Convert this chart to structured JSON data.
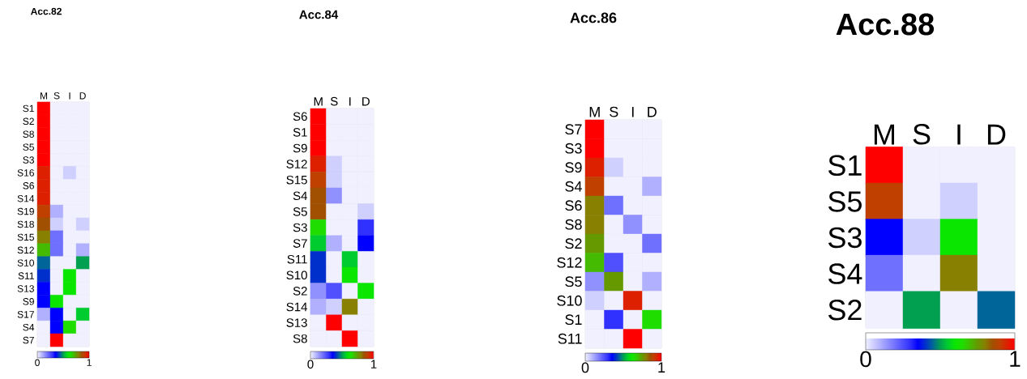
{
  "chart_data": [
    {
      "type": "heatmap",
      "title": "Acc.82",
      "categories": [
        "M",
        "S",
        "I",
        "D"
      ],
      "y_categories": [
        "S1",
        "S2",
        "S8",
        "S5",
        "S3",
        "S16",
        "S6",
        "S14",
        "S19",
        "S18",
        "S15",
        "S12",
        "S10",
        "S11",
        "S13",
        "S9",
        "S17",
        "S4",
        "S7"
      ],
      "cells": [
        [
          1,
          0,
          0,
          0
        ],
        [
          1,
          0,
          0,
          0
        ],
        [
          1,
          0,
          0,
          0
        ],
        [
          1,
          0,
          0,
          0
        ],
        [
          1,
          0,
          0,
          0
        ],
        [
          0.95,
          0,
          0.05,
          0
        ],
        [
          0.95,
          0,
          0,
          0
        ],
        [
          0.95,
          0,
          0,
          0
        ],
        [
          0.9,
          0.1,
          0,
          0
        ],
        [
          0.85,
          0.05,
          0,
          0.05
        ],
        [
          0.8,
          0.2,
          0,
          0
        ],
        [
          0.7,
          0.2,
          0,
          0.1
        ],
        [
          0.45,
          0,
          0,
          0.5
        ],
        [
          0.4,
          0,
          0.6,
          0
        ],
        [
          0.35,
          0,
          0.6,
          0
        ],
        [
          0.35,
          0.6,
          0,
          0
        ],
        [
          0.1,
          0.35,
          0,
          0.55
        ],
        [
          0,
          0.35,
          0.65,
          0
        ],
        [
          0,
          1,
          0,
          0
        ]
      ],
      "clim": [
        0,
        1
      ],
      "cticks": [
        0,
        1
      ]
    },
    {
      "type": "heatmap",
      "title": "Acc.84",
      "categories": [
        "M",
        "S",
        "I",
        "D"
      ],
      "y_categories": [
        "S6",
        "S1",
        "S9",
        "S12",
        "S15",
        "S4",
        "S5",
        "S3",
        "S7",
        "S11",
        "S10",
        "S2",
        "S14",
        "S13",
        "S8"
      ],
      "cells": [
        [
          1,
          0,
          0,
          0
        ],
        [
          1,
          0,
          0,
          0
        ],
        [
          1,
          0,
          0,
          0
        ],
        [
          0.95,
          0.05,
          0,
          0
        ],
        [
          0.9,
          0.05,
          0,
          0
        ],
        [
          0.85,
          0.15,
          0,
          0
        ],
        [
          0.85,
          0,
          0,
          0.05
        ],
        [
          0.65,
          0,
          0,
          0.3
        ],
        [
          0.55,
          0.1,
          0,
          0.35
        ],
        [
          0.4,
          0,
          0.55,
          0
        ],
        [
          0.4,
          0,
          0.6,
          0
        ],
        [
          0.15,
          0.25,
          0,
          0.6
        ],
        [
          0.1,
          0.05,
          0.8,
          0
        ],
        [
          0,
          1,
          0,
          0
        ],
        [
          0,
          0,
          1,
          0
        ]
      ],
      "clim": [
        0,
        1
      ],
      "cticks": [
        0,
        1
      ]
    },
    {
      "type": "heatmap",
      "title": "Acc.86",
      "categories": [
        "M",
        "S",
        "I",
        "D"
      ],
      "y_categories": [
        "S7",
        "S3",
        "S9",
        "S4",
        "S6",
        "S8",
        "S2",
        "S12",
        "S5",
        "S10",
        "S1",
        "S11"
      ],
      "cells": [
        [
          1,
          0,
          0,
          0
        ],
        [
          1,
          0,
          0,
          0
        ],
        [
          0.95,
          0.05,
          0,
          0
        ],
        [
          0.9,
          0,
          0,
          0.1
        ],
        [
          0.8,
          0.2,
          0,
          0
        ],
        [
          0.8,
          0,
          0.15,
          0
        ],
        [
          0.75,
          0,
          0,
          0.2
        ],
        [
          0.7,
          0.25,
          0,
          0
        ],
        [
          0.15,
          0.75,
          0,
          0.1
        ],
        [
          0.05,
          0,
          0.95,
          0
        ],
        [
          0,
          0.3,
          0,
          0.65
        ],
        [
          0,
          0,
          1,
          0
        ]
      ],
      "clim": [
        0,
        1
      ],
      "cticks": [
        0,
        1
      ]
    },
    {
      "type": "heatmap",
      "title": "Acc.88",
      "categories": [
        "M",
        "S",
        "I",
        "D"
      ],
      "y_categories": [
        "S1",
        "S5",
        "S3",
        "S4",
        "S2"
      ],
      "cells": [
        [
          1,
          0,
          0,
          0
        ],
        [
          0.9,
          0,
          0.05,
          0
        ],
        [
          0.35,
          0.05,
          0.6,
          0
        ],
        [
          0.2,
          0,
          0.8,
          0
        ],
        [
          0,
          0.5,
          0,
          0.45
        ]
      ],
      "clim": [
        0,
        1
      ],
      "cticks": [
        0,
        1
      ]
    }
  ]
}
